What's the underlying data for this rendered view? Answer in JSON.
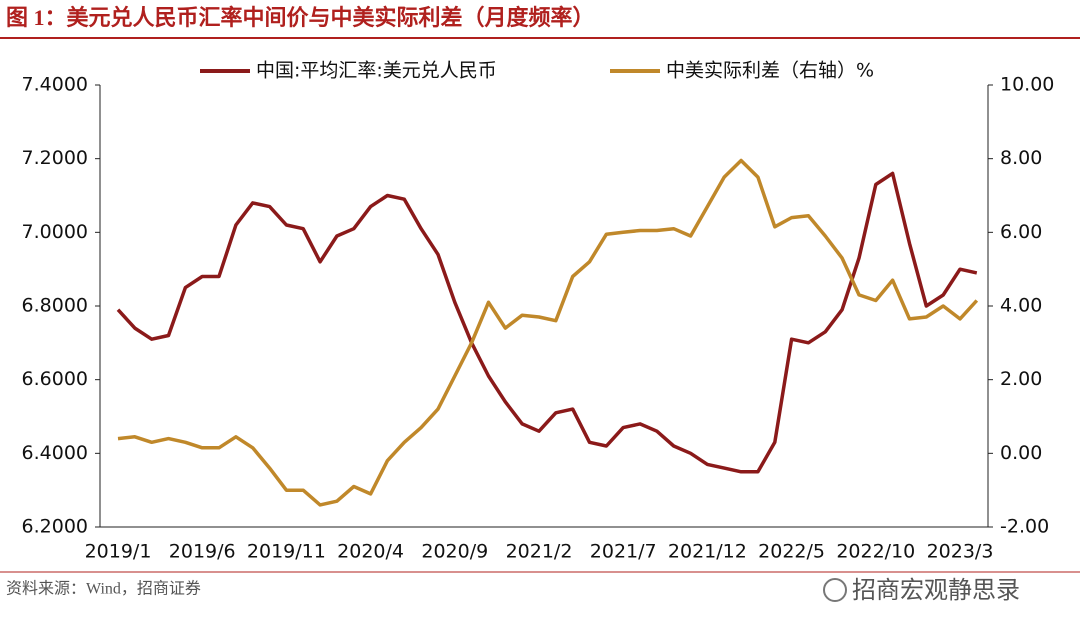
{
  "chart_data": {
    "type": "line",
    "title": "图 1：美元兑人民币汇率中间价与中美实际利差（月度频率）",
    "source": "资料来源：Wind，招商证券",
    "watermark": "招商宏观静思录",
    "categories": [
      "2019/1",
      null,
      null,
      null,
      null,
      "2019/6",
      null,
      null,
      null,
      null,
      "2019/11",
      null,
      null,
      null,
      null,
      "2020/4",
      null,
      null,
      null,
      null,
      "2020/9",
      null,
      null,
      null,
      null,
      "2021/2",
      null,
      null,
      null,
      null,
      "2021/7",
      null,
      null,
      null,
      null,
      "2021/12",
      null,
      null,
      null,
      null,
      "2022/5",
      null,
      null,
      null,
      null,
      "2022/10",
      null,
      null,
      null,
      null,
      "2023/3",
      null
    ],
    "series": [
      {
        "name": "中国:平均汇率:美元兑人民币",
        "color": "#8b1a1a",
        "axis": "y",
        "values": [
          6.79,
          6.74,
          6.71,
          6.72,
          6.85,
          6.88,
          6.88,
          7.02,
          7.08,
          7.07,
          7.02,
          7.01,
          6.92,
          6.99,
          7.01,
          7.07,
          7.1,
          7.09,
          7.01,
          6.94,
          6.81,
          6.7,
          6.61,
          6.54,
          6.48,
          6.46,
          6.51,
          6.52,
          6.43,
          6.42,
          6.47,
          6.48,
          6.46,
          6.42,
          6.4,
          6.37,
          6.36,
          6.35,
          6.35,
          6.43,
          6.71,
          6.7,
          6.73,
          6.79,
          6.93,
          7.13,
          7.16,
          6.97,
          6.8,
          6.83,
          6.9,
          6.89
        ]
      },
      {
        "name": "中美实际利差（右轴）%",
        "color": "#c0882a",
        "axis": "y2",
        "values": [
          0.4,
          0.45,
          0.3,
          0.4,
          0.3,
          0.15,
          0.15,
          0.45,
          0.15,
          -0.4,
          -1.0,
          -1.0,
          -1.4,
          -1.3,
          -0.9,
          -1.1,
          -0.2,
          0.3,
          0.7,
          1.2,
          2.1,
          3.0,
          4.1,
          3.4,
          3.75,
          3.7,
          3.6,
          4.8,
          5.2,
          5.95,
          6.0,
          6.05,
          6.05,
          6.1,
          5.9,
          6.7,
          7.5,
          7.95,
          7.5,
          6.15,
          6.4,
          6.45,
          5.9,
          5.3,
          4.3,
          4.15,
          4.7,
          3.65,
          3.7,
          4.0,
          3.65,
          4.15
        ]
      }
    ],
    "ylim": [
      6.2,
      7.4
    ],
    "yticks": [
      {
        "value": 6.2,
        "label": "6.2000"
      },
      {
        "value": 6.4,
        "label": "6.4000"
      },
      {
        "value": 6.6,
        "label": "6.6000"
      },
      {
        "value": 6.8,
        "label": "6.8000"
      },
      {
        "value": 7.0,
        "label": "7.0000"
      },
      {
        "value": 7.2,
        "label": "7.2000"
      },
      {
        "value": 7.4,
        "label": "7.4000"
      }
    ],
    "y2lim": [
      -2,
      10
    ],
    "y2ticks": [
      {
        "value": -2,
        "label": "-2.00"
      },
      {
        "value": 0,
        "label": "0.00"
      },
      {
        "value": 2,
        "label": "2.00"
      },
      {
        "value": 4,
        "label": "4.00"
      },
      {
        "value": 6,
        "label": "6.00"
      },
      {
        "value": 8,
        "label": "8.00"
      },
      {
        "value": 10,
        "label": "10.00"
      }
    ],
    "legend": "top"
  }
}
